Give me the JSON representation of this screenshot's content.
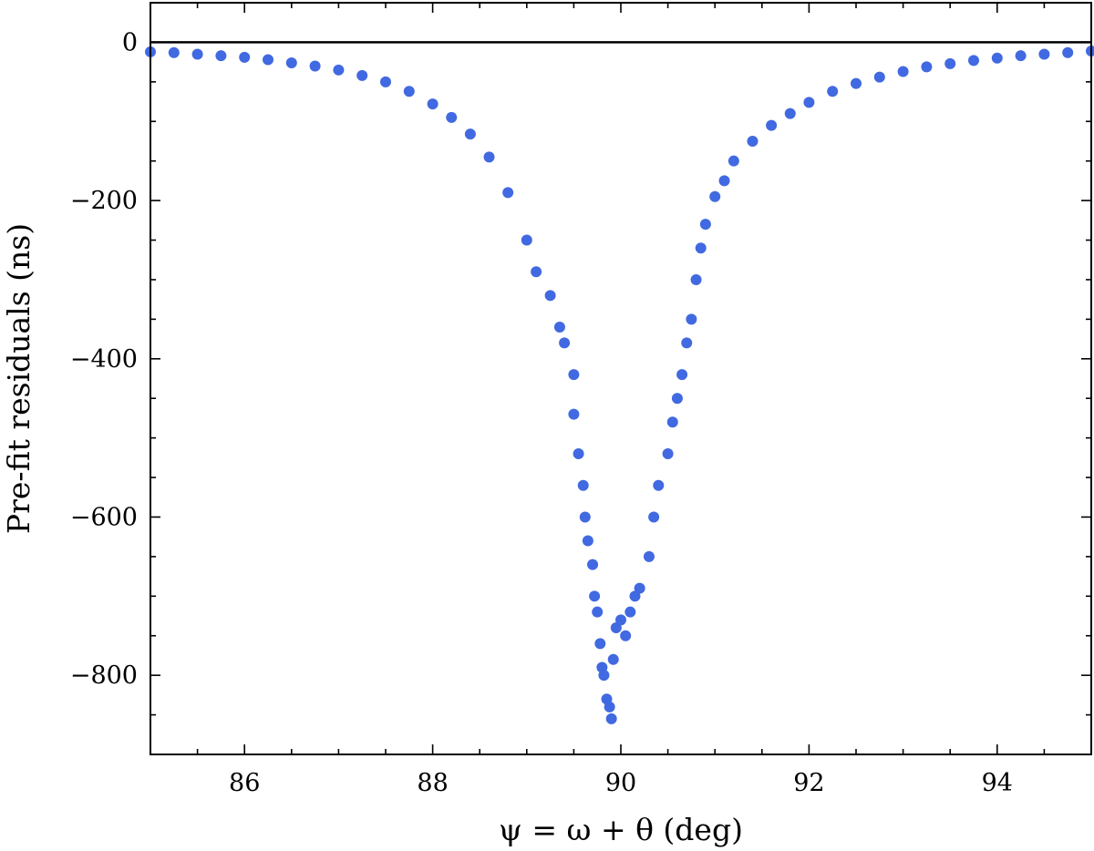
{
  "chart_data": {
    "type": "scatter",
    "title": "",
    "xlabel": "ψ = ω + θ (deg)",
    "ylabel": "Pre-fit residuals (ns)",
    "xlim": [
      85.0,
      95.0
    ],
    "ylim": [
      -900,
      50
    ],
    "x_ticks": [
      86,
      88,
      90,
      92,
      94
    ],
    "x_tick_labels": [
      "86",
      "88",
      "90",
      "92",
      "94"
    ],
    "y_ticks": [
      0,
      -200,
      -400,
      -600,
      -800
    ],
    "y_tick_labels": [
      "0",
      "−200",
      "−400",
      "−600",
      "−800"
    ],
    "reference_line_y": 0,
    "grid": false,
    "marker_color": "#4169E1",
    "series": [
      {
        "name": "",
        "points": [
          [
            85.0,
            -12
          ],
          [
            85.25,
            -13
          ],
          [
            85.5,
            -15
          ],
          [
            85.75,
            -17
          ],
          [
            86.0,
            -19
          ],
          [
            86.25,
            -22
          ],
          [
            86.5,
            -26
          ],
          [
            86.75,
            -30
          ],
          [
            87.0,
            -35
          ],
          [
            87.25,
            -42
          ],
          [
            87.5,
            -50
          ],
          [
            87.75,
            -62
          ],
          [
            88.0,
            -78
          ],
          [
            88.2,
            -95
          ],
          [
            88.4,
            -116
          ],
          [
            88.6,
            -145
          ],
          [
            88.8,
            -190
          ],
          [
            89.0,
            -250
          ],
          [
            89.1,
            -290
          ],
          [
            89.25,
            -320
          ],
          [
            89.35,
            -360
          ],
          [
            89.4,
            -380
          ],
          [
            89.5,
            -420
          ],
          [
            89.5,
            -470
          ],
          [
            89.55,
            -520
          ],
          [
            89.6,
            -560
          ],
          [
            89.62,
            -600
          ],
          [
            89.65,
            -630
          ],
          [
            89.7,
            -660
          ],
          [
            89.72,
            -700
          ],
          [
            89.75,
            -720
          ],
          [
            89.78,
            -760
          ],
          [
            89.8,
            -790
          ],
          [
            89.82,
            -800
          ],
          [
            89.85,
            -830
          ],
          [
            89.88,
            -840
          ],
          [
            89.9,
            -855
          ],
          [
            89.92,
            -780
          ],
          [
            89.95,
            -740
          ],
          [
            90.0,
            -730
          ],
          [
            90.05,
            -750
          ],
          [
            90.1,
            -720
          ],
          [
            90.15,
            -700
          ],
          [
            90.2,
            -690
          ],
          [
            90.3,
            -650
          ],
          [
            90.35,
            -600
          ],
          [
            90.4,
            -560
          ],
          [
            90.5,
            -520
          ],
          [
            90.55,
            -480
          ],
          [
            90.6,
            -450
          ],
          [
            90.65,
            -420
          ],
          [
            90.7,
            -380
          ],
          [
            90.75,
            -350
          ],
          [
            90.8,
            -300
          ],
          [
            90.85,
            -260
          ],
          [
            90.9,
            -230
          ],
          [
            91.0,
            -195
          ],
          [
            91.1,
            -175
          ],
          [
            91.2,
            -150
          ],
          [
            91.4,
            -125
          ],
          [
            91.6,
            -105
          ],
          [
            91.8,
            -90
          ],
          [
            92.0,
            -76
          ],
          [
            92.25,
            -62
          ],
          [
            92.5,
            -52
          ],
          [
            92.75,
            -44
          ],
          [
            93.0,
            -37
          ],
          [
            93.25,
            -31
          ],
          [
            93.5,
            -27
          ],
          [
            93.75,
            -23
          ],
          [
            94.0,
            -20
          ],
          [
            94.25,
            -17
          ],
          [
            94.5,
            -15
          ],
          [
            94.75,
            -13
          ],
          [
            95.0,
            -11
          ]
        ]
      }
    ]
  }
}
